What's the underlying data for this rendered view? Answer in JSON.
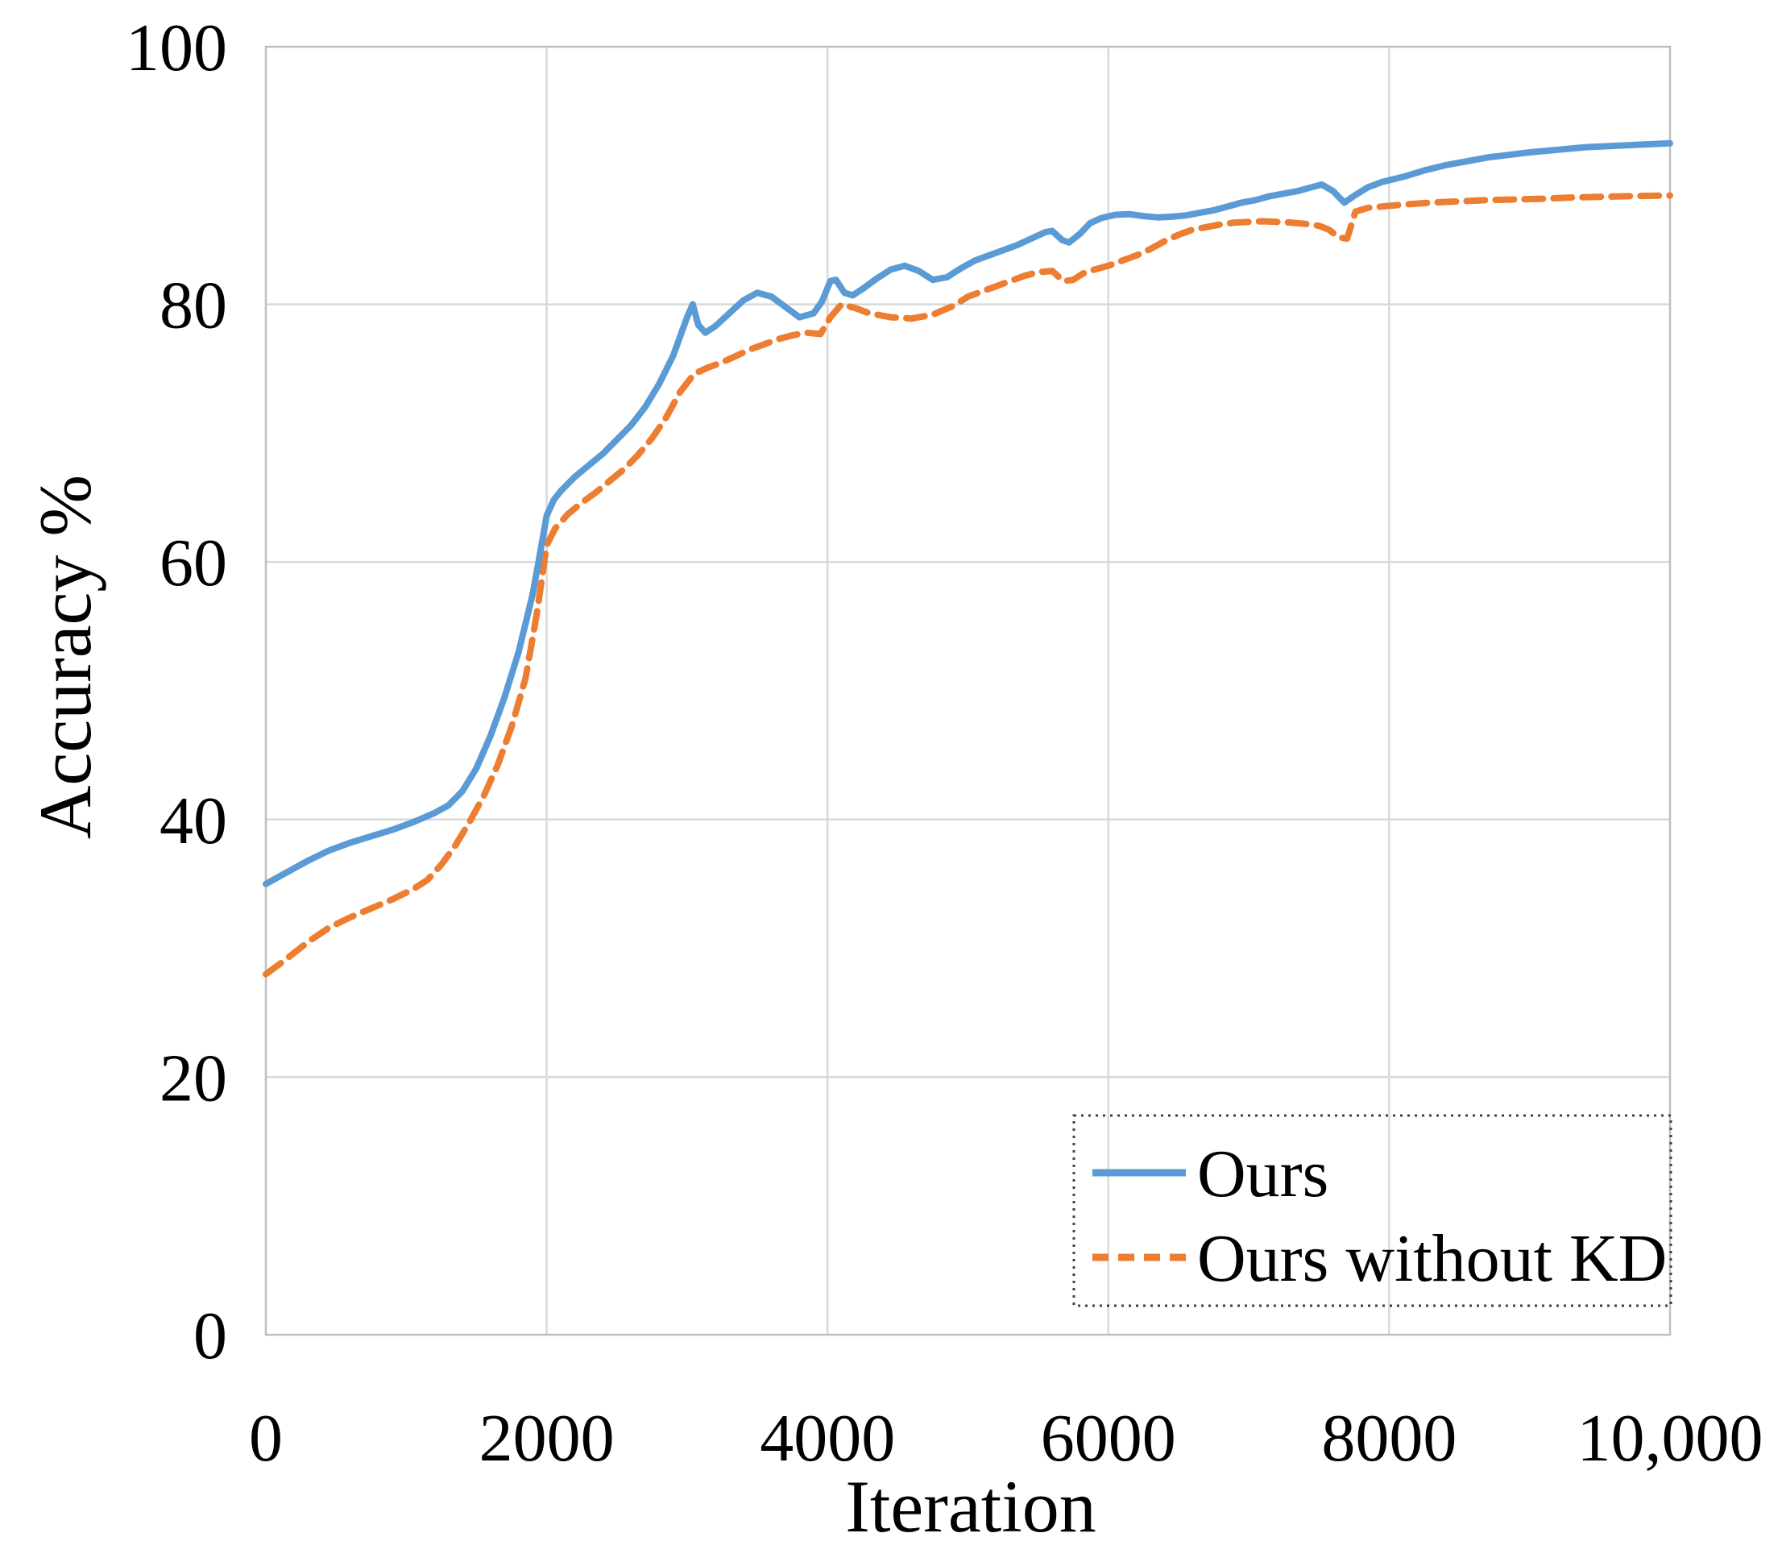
{
  "chart_data": {
    "type": "line",
    "title": "",
    "xlabel": "Iteration",
    "ylabel": "Accuracy %",
    "xlim": [
      0,
      10000
    ],
    "ylim": [
      0,
      100
    ],
    "grid": true,
    "x_ticks": {
      "values": [
        0,
        2000,
        4000,
        6000,
        8000,
        10000
      ],
      "labels": [
        "0",
        "2000",
        "4000",
        "6000",
        "8000",
        "10,000"
      ]
    },
    "y_ticks": {
      "values": [
        0,
        20,
        40,
        60,
        80,
        100
      ],
      "labels": [
        "0",
        "20",
        "40",
        "60",
        "80",
        "100"
      ]
    },
    "legend": {
      "position": "bottom-right",
      "border_style": "dotted",
      "entries": [
        {
          "label": "Ours",
          "color": "#5B9BD5",
          "line_style": "solid"
        },
        {
          "label": "Ours without KD",
          "color": "#ED7D31",
          "line_style": "dashed"
        }
      ]
    },
    "series": [
      {
        "name": "Ours",
        "color": "#5B9BD5",
        "line_style": "solid",
        "points": [
          [
            0,
            35.0
          ],
          [
            150,
            35.9
          ],
          [
            300,
            36.8
          ],
          [
            450,
            37.6
          ],
          [
            600,
            38.2
          ],
          [
            750,
            38.7
          ],
          [
            900,
            39.2
          ],
          [
            1050,
            39.8
          ],
          [
            1200,
            40.5
          ],
          [
            1300,
            41.1
          ],
          [
            1400,
            42.2
          ],
          [
            1500,
            44.0
          ],
          [
            1600,
            46.5
          ],
          [
            1700,
            49.5
          ],
          [
            1800,
            53.0
          ],
          [
            1900,
            57.5
          ],
          [
            1950,
            60.5
          ],
          [
            2000,
            63.6
          ],
          [
            2050,
            64.8
          ],
          [
            2100,
            65.5
          ],
          [
            2200,
            66.6
          ],
          [
            2300,
            67.5
          ],
          [
            2400,
            68.4
          ],
          [
            2500,
            69.5
          ],
          [
            2600,
            70.6
          ],
          [
            2700,
            72.0
          ],
          [
            2800,
            73.8
          ],
          [
            2900,
            76.0
          ],
          [
            3000,
            79.0
          ],
          [
            3040,
            80.0
          ],
          [
            3080,
            78.4
          ],
          [
            3130,
            77.8
          ],
          [
            3200,
            78.3
          ],
          [
            3300,
            79.3
          ],
          [
            3400,
            80.3
          ],
          [
            3500,
            80.9
          ],
          [
            3600,
            80.6
          ],
          [
            3700,
            79.8
          ],
          [
            3800,
            79.0
          ],
          [
            3900,
            79.3
          ],
          [
            3960,
            80.2
          ],
          [
            4020,
            81.8
          ],
          [
            4060,
            81.9
          ],
          [
            4120,
            80.9
          ],
          [
            4180,
            80.7
          ],
          [
            4250,
            81.2
          ],
          [
            4350,
            82.0
          ],
          [
            4450,
            82.7
          ],
          [
            4550,
            83.0
          ],
          [
            4650,
            82.6
          ],
          [
            4750,
            81.9
          ],
          [
            4850,
            82.1
          ],
          [
            4950,
            82.8
          ],
          [
            5050,
            83.4
          ],
          [
            5150,
            83.8
          ],
          [
            5250,
            84.2
          ],
          [
            5350,
            84.6
          ],
          [
            5450,
            85.1
          ],
          [
            5550,
            85.6
          ],
          [
            5600,
            85.7
          ],
          [
            5670,
            85.0
          ],
          [
            5720,
            84.8
          ],
          [
            5800,
            85.5
          ],
          [
            5870,
            86.3
          ],
          [
            5950,
            86.7
          ],
          [
            6050,
            86.95
          ],
          [
            6150,
            87.0
          ],
          [
            6250,
            86.85
          ],
          [
            6350,
            86.75
          ],
          [
            6450,
            86.8
          ],
          [
            6550,
            86.9
          ],
          [
            6650,
            87.1
          ],
          [
            6750,
            87.3
          ],
          [
            6850,
            87.6
          ],
          [
            6950,
            87.9
          ],
          [
            7050,
            88.1
          ],
          [
            7150,
            88.4
          ],
          [
            7250,
            88.6
          ],
          [
            7350,
            88.8
          ],
          [
            7450,
            89.1
          ],
          [
            7520,
            89.3
          ],
          [
            7600,
            88.8
          ],
          [
            7680,
            87.9
          ],
          [
            7760,
            88.5
          ],
          [
            7850,
            89.1
          ],
          [
            7950,
            89.5
          ],
          [
            8100,
            89.9
          ],
          [
            8250,
            90.4
          ],
          [
            8400,
            90.8
          ],
          [
            8550,
            91.1
          ],
          [
            8700,
            91.4
          ],
          [
            8850,
            91.6
          ],
          [
            9000,
            91.8
          ],
          [
            9200,
            92.0
          ],
          [
            9400,
            92.2
          ],
          [
            9600,
            92.3
          ],
          [
            9800,
            92.4
          ],
          [
            10000,
            92.5
          ]
        ]
      },
      {
        "name": "Ours without KD",
        "color": "#ED7D31",
        "line_style": "dashed",
        "points": [
          [
            0,
            28.0
          ],
          [
            150,
            29.2
          ],
          [
            300,
            30.5
          ],
          [
            450,
            31.6
          ],
          [
            600,
            32.4
          ],
          [
            750,
            33.1
          ],
          [
            900,
            33.8
          ],
          [
            1050,
            34.6
          ],
          [
            1150,
            35.3
          ],
          [
            1250,
            36.5
          ],
          [
            1350,
            38.0
          ],
          [
            1450,
            39.8
          ],
          [
            1550,
            41.8
          ],
          [
            1650,
            44.2
          ],
          [
            1750,
            47.2
          ],
          [
            1850,
            51.0
          ],
          [
            1930,
            56.0
          ],
          [
            2000,
            61.3
          ],
          [
            2060,
            62.6
          ],
          [
            2150,
            63.7
          ],
          [
            2250,
            64.6
          ],
          [
            2350,
            65.4
          ],
          [
            2450,
            66.3
          ],
          [
            2550,
            67.2
          ],
          [
            2650,
            68.3
          ],
          [
            2750,
            69.6
          ],
          [
            2850,
            71.2
          ],
          [
            2950,
            73.2
          ],
          [
            3050,
            74.6
          ],
          [
            3150,
            75.1
          ],
          [
            3250,
            75.5
          ],
          [
            3350,
            76.0
          ],
          [
            3450,
            76.5
          ],
          [
            3550,
            76.9
          ],
          [
            3650,
            77.3
          ],
          [
            3750,
            77.6
          ],
          [
            3850,
            77.8
          ],
          [
            3950,
            77.7
          ],
          [
            4020,
            79.0
          ],
          [
            4100,
            80.0
          ],
          [
            4200,
            79.7
          ],
          [
            4300,
            79.3
          ],
          [
            4450,
            79.0
          ],
          [
            4600,
            78.9
          ],
          [
            4750,
            79.2
          ],
          [
            4900,
            79.9
          ],
          [
            5000,
            80.6
          ],
          [
            5100,
            81.0
          ],
          [
            5200,
            81.4
          ],
          [
            5300,
            81.8
          ],
          [
            5400,
            82.2
          ],
          [
            5500,
            82.5
          ],
          [
            5600,
            82.6
          ],
          [
            5680,
            81.8
          ],
          [
            5750,
            81.9
          ],
          [
            5820,
            82.4
          ],
          [
            5900,
            82.7
          ],
          [
            6000,
            83.0
          ],
          [
            6100,
            83.4
          ],
          [
            6200,
            83.8
          ],
          [
            6300,
            84.3
          ],
          [
            6400,
            84.9
          ],
          [
            6500,
            85.4
          ],
          [
            6600,
            85.8
          ],
          [
            6700,
            86.0
          ],
          [
            6800,
            86.2
          ],
          [
            6900,
            86.35
          ],
          [
            7000,
            86.4
          ],
          [
            7100,
            86.45
          ],
          [
            7200,
            86.4
          ],
          [
            7300,
            86.35
          ],
          [
            7400,
            86.25
          ],
          [
            7500,
            86.1
          ],
          [
            7570,
            85.8
          ],
          [
            7640,
            85.2
          ],
          [
            7700,
            85.1
          ],
          [
            7760,
            87.2
          ],
          [
            7850,
            87.5
          ],
          [
            7950,
            87.6
          ],
          [
            8100,
            87.75
          ],
          [
            8300,
            87.9
          ],
          [
            8500,
            88.0
          ],
          [
            8700,
            88.1
          ],
          [
            8900,
            88.15
          ],
          [
            9100,
            88.2
          ],
          [
            9300,
            88.3
          ],
          [
            9500,
            88.35
          ],
          [
            9700,
            88.4
          ],
          [
            10000,
            88.45
          ]
        ]
      }
    ],
    "plot_colors": {
      "grid": "#d9d9d9",
      "border": "#bfbfbf",
      "text": "#000000",
      "background": "#ffffff"
    }
  }
}
